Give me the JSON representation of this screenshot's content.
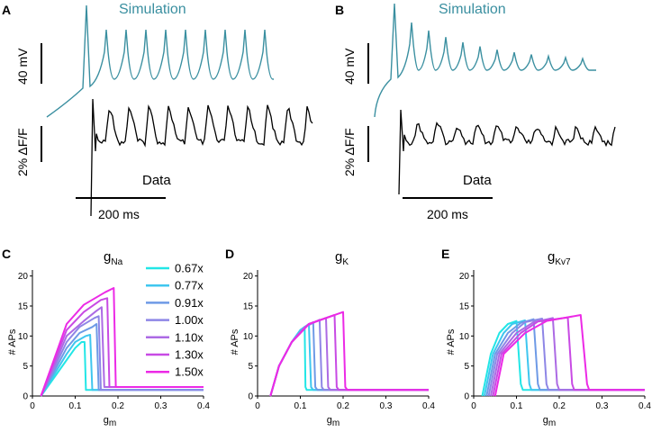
{
  "panels": {
    "A": {
      "label": "A",
      "sim_label": "Simulation",
      "data_label": "Data",
      "scale_v": "40 mV",
      "scale_f": "2% ΔF/F",
      "scale_t": "200 ms"
    },
    "B": {
      "label": "B",
      "sim_label": "Simulation",
      "data_label": "Data",
      "scale_v": "40 mV",
      "scale_f": "2% ΔF/F",
      "scale_t": "200 ms"
    }
  },
  "colors": {
    "sim_trace": "#3a8fa0",
    "data_trace": "#000000",
    "sim_text": "#3a8fa0"
  },
  "legend": {
    "entries": [
      "0.67x",
      "0.77x",
      "0.91x",
      "1.00x",
      "1.10x",
      "1.30x",
      "1.50x"
    ],
    "colors": [
      "#22e6e6",
      "#3fc6ef",
      "#6e9ae6",
      "#8e86e6",
      "#ac6ae4",
      "#c84ae4",
      "#ec2ae6"
    ]
  },
  "chart_data": [
    {
      "id": "C",
      "type": "line",
      "panel_label": "C",
      "title_main": "g",
      "title_sub": "Na",
      "xlabel_main": "g",
      "xlabel_sub": "m",
      "ylabel": "# APs",
      "xlim": [
        0,
        0.4
      ],
      "ylim": [
        0,
        21
      ],
      "xticks": [
        "0",
        "0.1",
        "0.2",
        "0.3",
        "0.4"
      ],
      "yticks": [
        "0",
        "5",
        "10",
        "15",
        "20"
      ],
      "series": [
        {
          "name": "0.67x",
          "x": [
            0.02,
            0.05,
            0.08,
            0.1,
            0.115,
            0.122,
            0.125,
            0.13,
            0.4
          ],
          "y": [
            0,
            3,
            6,
            8,
            9,
            9,
            1,
            1,
            1
          ]
        },
        {
          "name": "0.77x",
          "x": [
            0.02,
            0.05,
            0.08,
            0.1,
            0.125,
            0.135,
            0.14,
            0.145,
            0.4
          ],
          "y": [
            0,
            3.5,
            7,
            9,
            10,
            10.2,
            1,
            1,
            1
          ]
        },
        {
          "name": "0.91x",
          "x": [
            0.02,
            0.05,
            0.08,
            0.11,
            0.14,
            0.15,
            0.155,
            0.16,
            0.4
          ],
          "y": [
            0,
            4,
            8,
            10.5,
            11.5,
            12,
            1,
            1,
            1
          ]
        },
        {
          "name": "1.00x",
          "x": [
            0.02,
            0.05,
            0.08,
            0.11,
            0.145,
            0.155,
            0.16,
            0.165,
            0.4
          ],
          "y": [
            0,
            4.5,
            9,
            11.5,
            13,
            13.3,
            1,
            1,
            1
          ]
        },
        {
          "name": "1.10x",
          "x": [
            0.02,
            0.05,
            0.08,
            0.12,
            0.15,
            0.162,
            0.168,
            0.172,
            0.4
          ],
          "y": [
            0,
            5,
            10,
            12.5,
            14.2,
            14.8,
            1.5,
            1.5,
            1.5
          ]
        },
        {
          "name": "1.30x",
          "x": [
            0.02,
            0.05,
            0.08,
            0.12,
            0.16,
            0.175,
            0.18,
            0.185,
            0.4
          ],
          "y": [
            0,
            5.5,
            11,
            14,
            16,
            16.3,
            1.5,
            1.5,
            1.5
          ]
        },
        {
          "name": "1.50x",
          "x": [
            0.02,
            0.05,
            0.08,
            0.12,
            0.17,
            0.19,
            0.195,
            0.205,
            0.4
          ],
          "y": [
            0,
            6,
            12,
            15.2,
            17.3,
            18,
            1.5,
            1.5,
            1.5
          ]
        }
      ]
    },
    {
      "id": "D",
      "type": "line",
      "panel_label": "D",
      "title_main": "g",
      "title_sub": "K",
      "xlabel_main": "g",
      "xlabel_sub": "m",
      "ylabel": "# APs",
      "xlim": [
        0,
        0.4
      ],
      "ylim": [
        0,
        21
      ],
      "xticks": [
        "0",
        "0.1",
        "0.2",
        "0.3",
        "0.4"
      ],
      "yticks": [
        "0",
        "5",
        "10",
        "15",
        "20"
      ],
      "series": [
        {
          "name": "0.67x",
          "x": [
            0.03,
            0.05,
            0.08,
            0.1,
            0.11,
            0.112,
            0.115,
            0.4
          ],
          "y": [
            0,
            5,
            9,
            11,
            11.5,
            1.5,
            1,
            1
          ]
        },
        {
          "name": "0.77x",
          "x": [
            0.03,
            0.05,
            0.08,
            0.1,
            0.12,
            0.125,
            0.13,
            0.4
          ],
          "y": [
            0,
            5,
            9,
            11,
            12,
            1.5,
            1,
            1
          ]
        },
        {
          "name": "0.91x",
          "x": [
            0.03,
            0.05,
            0.08,
            0.11,
            0.13,
            0.135,
            0.14,
            0.4
          ],
          "y": [
            0,
            5,
            9,
            11.5,
            12.3,
            1.5,
            1,
            1
          ]
        },
        {
          "name": "1.00x",
          "x": [
            0.03,
            0.05,
            0.08,
            0.11,
            0.145,
            0.15,
            0.155,
            0.4
          ],
          "y": [
            0,
            5,
            9,
            11.5,
            12.7,
            1.5,
            1,
            1
          ]
        },
        {
          "name": "1.10x",
          "x": [
            0.03,
            0.05,
            0.08,
            0.12,
            0.16,
            0.165,
            0.17,
            0.4
          ],
          "y": [
            0,
            5,
            9,
            12,
            13,
            1.5,
            1,
            1
          ]
        },
        {
          "name": "1.30x",
          "x": [
            0.03,
            0.05,
            0.08,
            0.12,
            0.18,
            0.185,
            0.19,
            0.4
          ],
          "y": [
            0,
            5,
            9,
            12,
            13.5,
            1.5,
            1,
            1
          ]
        },
        {
          "name": "1.50x",
          "x": [
            0.03,
            0.05,
            0.08,
            0.12,
            0.2,
            0.205,
            0.21,
            0.4
          ],
          "y": [
            0,
            5,
            9,
            12,
            14,
            1.5,
            1,
            1
          ]
        }
      ]
    },
    {
      "id": "E",
      "type": "line",
      "panel_label": "E",
      "title_main": "g",
      "title_sub": "Kv7",
      "xlabel_main": "g",
      "xlabel_sub": "m",
      "ylabel": "# APs",
      "xlim": [
        0,
        0.4
      ],
      "ylim": [
        0,
        21
      ],
      "xticks": [
        "0",
        "0.1",
        "0.2",
        "0.3",
        "0.4"
      ],
      "yticks": [
        "0",
        "5",
        "10",
        "15",
        "20"
      ],
      "series": [
        {
          "name": "0.67x",
          "x": [
            0.02,
            0.04,
            0.06,
            0.08,
            0.1,
            0.11,
            0.115,
            0.4
          ],
          "y": [
            0,
            7,
            10.5,
            12,
            12.5,
            2,
            1,
            1
          ]
        },
        {
          "name": "0.77x",
          "x": [
            0.025,
            0.045,
            0.07,
            0.09,
            0.12,
            0.13,
            0.135,
            0.4
          ],
          "y": [
            0,
            7,
            10.5,
            12,
            12.6,
            2,
            1,
            1
          ]
        },
        {
          "name": "0.91x",
          "x": [
            0.03,
            0.05,
            0.08,
            0.11,
            0.14,
            0.15,
            0.155,
            0.4
          ],
          "y": [
            0,
            7,
            10.5,
            12.2,
            12.8,
            2,
            1,
            1
          ]
        },
        {
          "name": "1.00x",
          "x": [
            0.035,
            0.055,
            0.09,
            0.12,
            0.16,
            0.17,
            0.175,
            0.4
          ],
          "y": [
            0,
            7,
            10.5,
            12.3,
            12.9,
            2,
            1,
            1
          ]
        },
        {
          "name": "1.10x",
          "x": [
            0.04,
            0.06,
            0.1,
            0.14,
            0.185,
            0.195,
            0.2,
            0.4
          ],
          "y": [
            0,
            7,
            10.5,
            12.3,
            13,
            2,
            1,
            1
          ]
        },
        {
          "name": "1.30x",
          "x": [
            0.045,
            0.065,
            0.11,
            0.15,
            0.22,
            0.23,
            0.235,
            0.4
          ],
          "y": [
            0,
            7,
            10.5,
            12.4,
            13.1,
            2,
            1,
            1
          ]
        },
        {
          "name": "1.50x",
          "x": [
            0.05,
            0.07,
            0.12,
            0.17,
            0.25,
            0.265,
            0.27,
            0.4
          ],
          "y": [
            0,
            7,
            10.5,
            12.5,
            13.5,
            2,
            1,
            1
          ]
        }
      ]
    }
  ]
}
